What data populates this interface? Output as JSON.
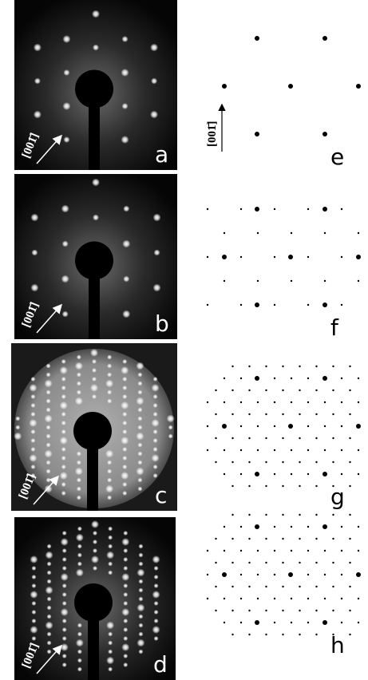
{
  "photos": [
    {
      "label": "a",
      "direction": "[001̄]"
    },
    {
      "label": "b",
      "direction": "[001̄]"
    },
    {
      "label": "c",
      "direction": "[001̄]"
    },
    {
      "label": "d",
      "direction": "[001̄]"
    }
  ],
  "schematics": [
    {
      "label": "e",
      "direction": "[001̄]"
    },
    {
      "label": "f"
    },
    {
      "label": "g"
    },
    {
      "label": "h"
    }
  ]
}
